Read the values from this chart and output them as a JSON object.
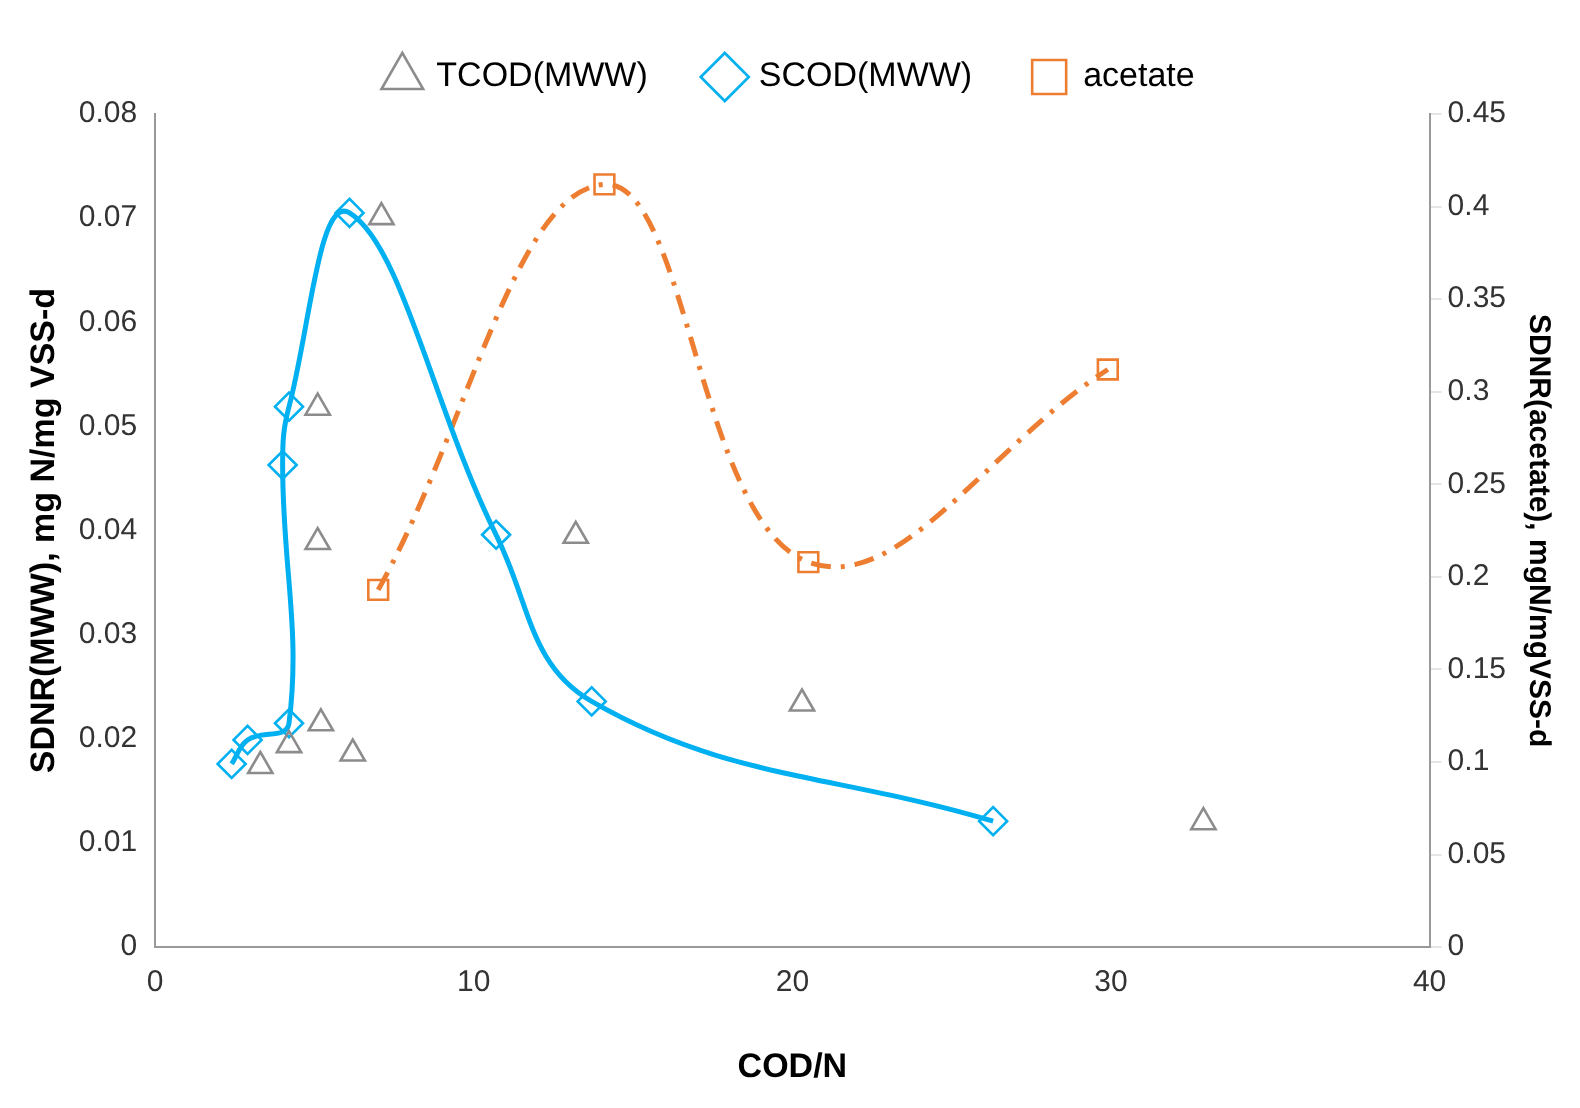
{
  "chart_data": {
    "type": "scatter",
    "xlabel": "COD/N",
    "ylabel": "SDNR(MWW), mg N/mg VSS-d",
    "y2label": "SDNR(acetate), mgN/mgVSS-d",
    "xlim": [
      0,
      40
    ],
    "xticks": [
      0,
      10,
      20,
      30,
      40
    ],
    "ylim": [
      0,
      0.08
    ],
    "yticks": [
      0,
      0.01,
      0.02,
      0.03,
      0.04,
      0.05,
      0.06,
      0.07,
      0.08
    ],
    "y2lim": [
      0,
      0.45
    ],
    "y2ticks": [
      0,
      0.05,
      0.1,
      0.15,
      0.2,
      0.25,
      0.3,
      0.35,
      0.4,
      0.45
    ],
    "grid": false,
    "legend": "top",
    "series": [
      {
        "name": "TCOD(MWW)",
        "type": "scatter",
        "marker": "triangle",
        "color": "#8c8c8c",
        "x": [
          3.3,
          4.2,
          5.1,
          5.1,
          5.2,
          6.2,
          7.1,
          13.2,
          20.3,
          32.9
        ],
        "values": [
          0.0174,
          0.0194,
          0.0518,
          0.0389,
          0.0215,
          0.0186,
          0.0701,
          0.0395,
          0.0234,
          0.012
        ]
      },
      {
        "name": "SCOD(MWW)",
        "type": "line",
        "marker": "diamond",
        "line_style": "solid",
        "color": "#00b0f0",
        "x": [
          2.4,
          2.9,
          4.2,
          4.0,
          4.2,
          6.1,
          10.7,
          13.7,
          26.3
        ],
        "values": [
          0.0176,
          0.0199,
          0.0215,
          0.0463,
          0.0519,
          0.0705,
          0.0396,
          0.0236,
          0.0121
        ]
      },
      {
        "name": "acetate",
        "type": "line",
        "axis": "y2",
        "marker": "square",
        "line_style": "dashed",
        "color": "#ed7d31",
        "x": [
          7.0,
          14.1,
          20.5,
          29.9
        ],
        "values": [
          0.193,
          0.412,
          0.208,
          0.312
        ]
      }
    ]
  }
}
